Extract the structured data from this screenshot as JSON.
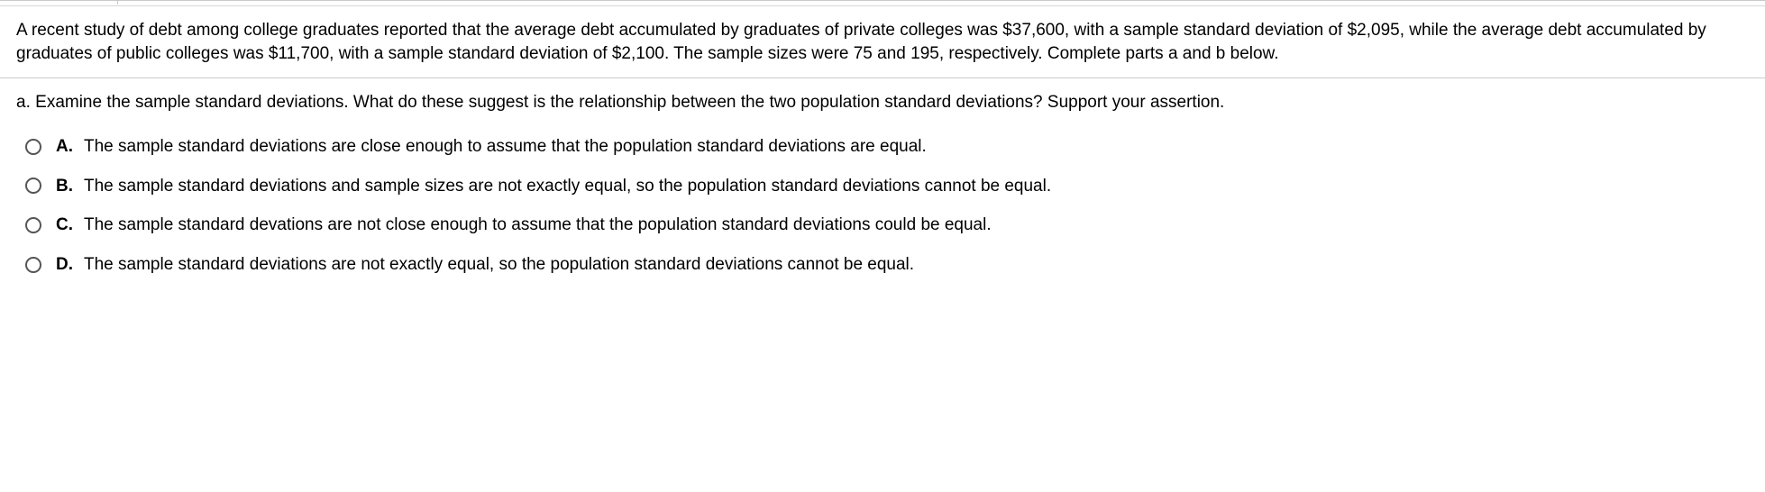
{
  "problem": {
    "statement": "A recent study of debt among college graduates reported that the average debt accumulated by graduates of private colleges was $37,600, with a sample standard deviation of $2,095, while the average debt accumulated by graduates of public colleges was $11,700, with a sample standard deviation of $2,100. The sample sizes were 75 and 195, respectively. Complete parts a and b below."
  },
  "question": {
    "part_label": "a.",
    "text": "Examine the sample standard deviations. What do these suggest is the relationship between the two population standard deviations? Support your assertion."
  },
  "options": [
    {
      "letter": "A.",
      "text": "The sample standard deviations are close enough to assume that the population standard deviations are equal."
    },
    {
      "letter": "B.",
      "text": "The sample standard deviations and sample sizes are not exactly equal, so the population standard deviations cannot be equal."
    },
    {
      "letter": "C.",
      "text": "The sample standard devations are not close enough to assume that the population standard deviations could be equal."
    },
    {
      "letter": "D.",
      "text": "The sample standard deviations are not exactly equal, so the population standard deviations cannot be equal."
    }
  ],
  "colors": {
    "text": "#000000",
    "background": "#ffffff",
    "divider": "#cccccc",
    "radio_border": "#555555"
  }
}
